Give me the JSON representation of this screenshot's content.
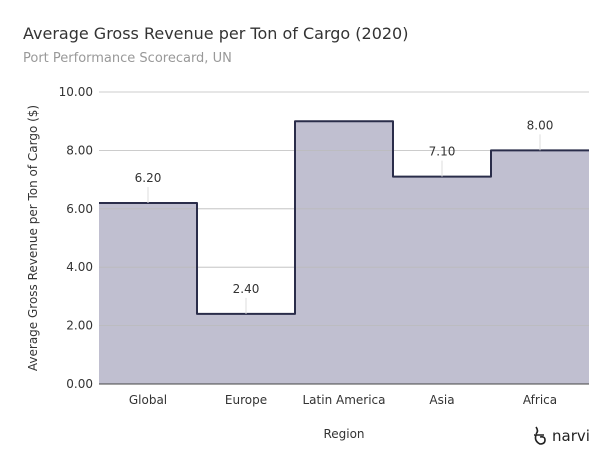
{
  "chart_data": {
    "type": "step-area",
    "title": "Average Gross Revenue per Ton of Cargo (2020)",
    "subtitle": "Port Performance Scorecard, UN",
    "xlabel": "Region",
    "ylabel": "Average Gross Revenue per Ton of Cargo ($)",
    "categories": [
      "Global",
      "Europe",
      "Latin America",
      "Asia",
      "Africa"
    ],
    "values": [
      6.2,
      2.4,
      9.0,
      7.1,
      8.0
    ],
    "data_labels": [
      "6.20",
      "2.40",
      "",
      "7.10",
      "8.00"
    ],
    "ylim": [
      0,
      10
    ],
    "yticks": [
      "0.00",
      "2.00",
      "4.00",
      "6.00",
      "8.00",
      "10.00"
    ],
    "grid": true,
    "fill_color": "#c0bfd0",
    "line_color": "#2a2d4a"
  },
  "brand": "narvi"
}
